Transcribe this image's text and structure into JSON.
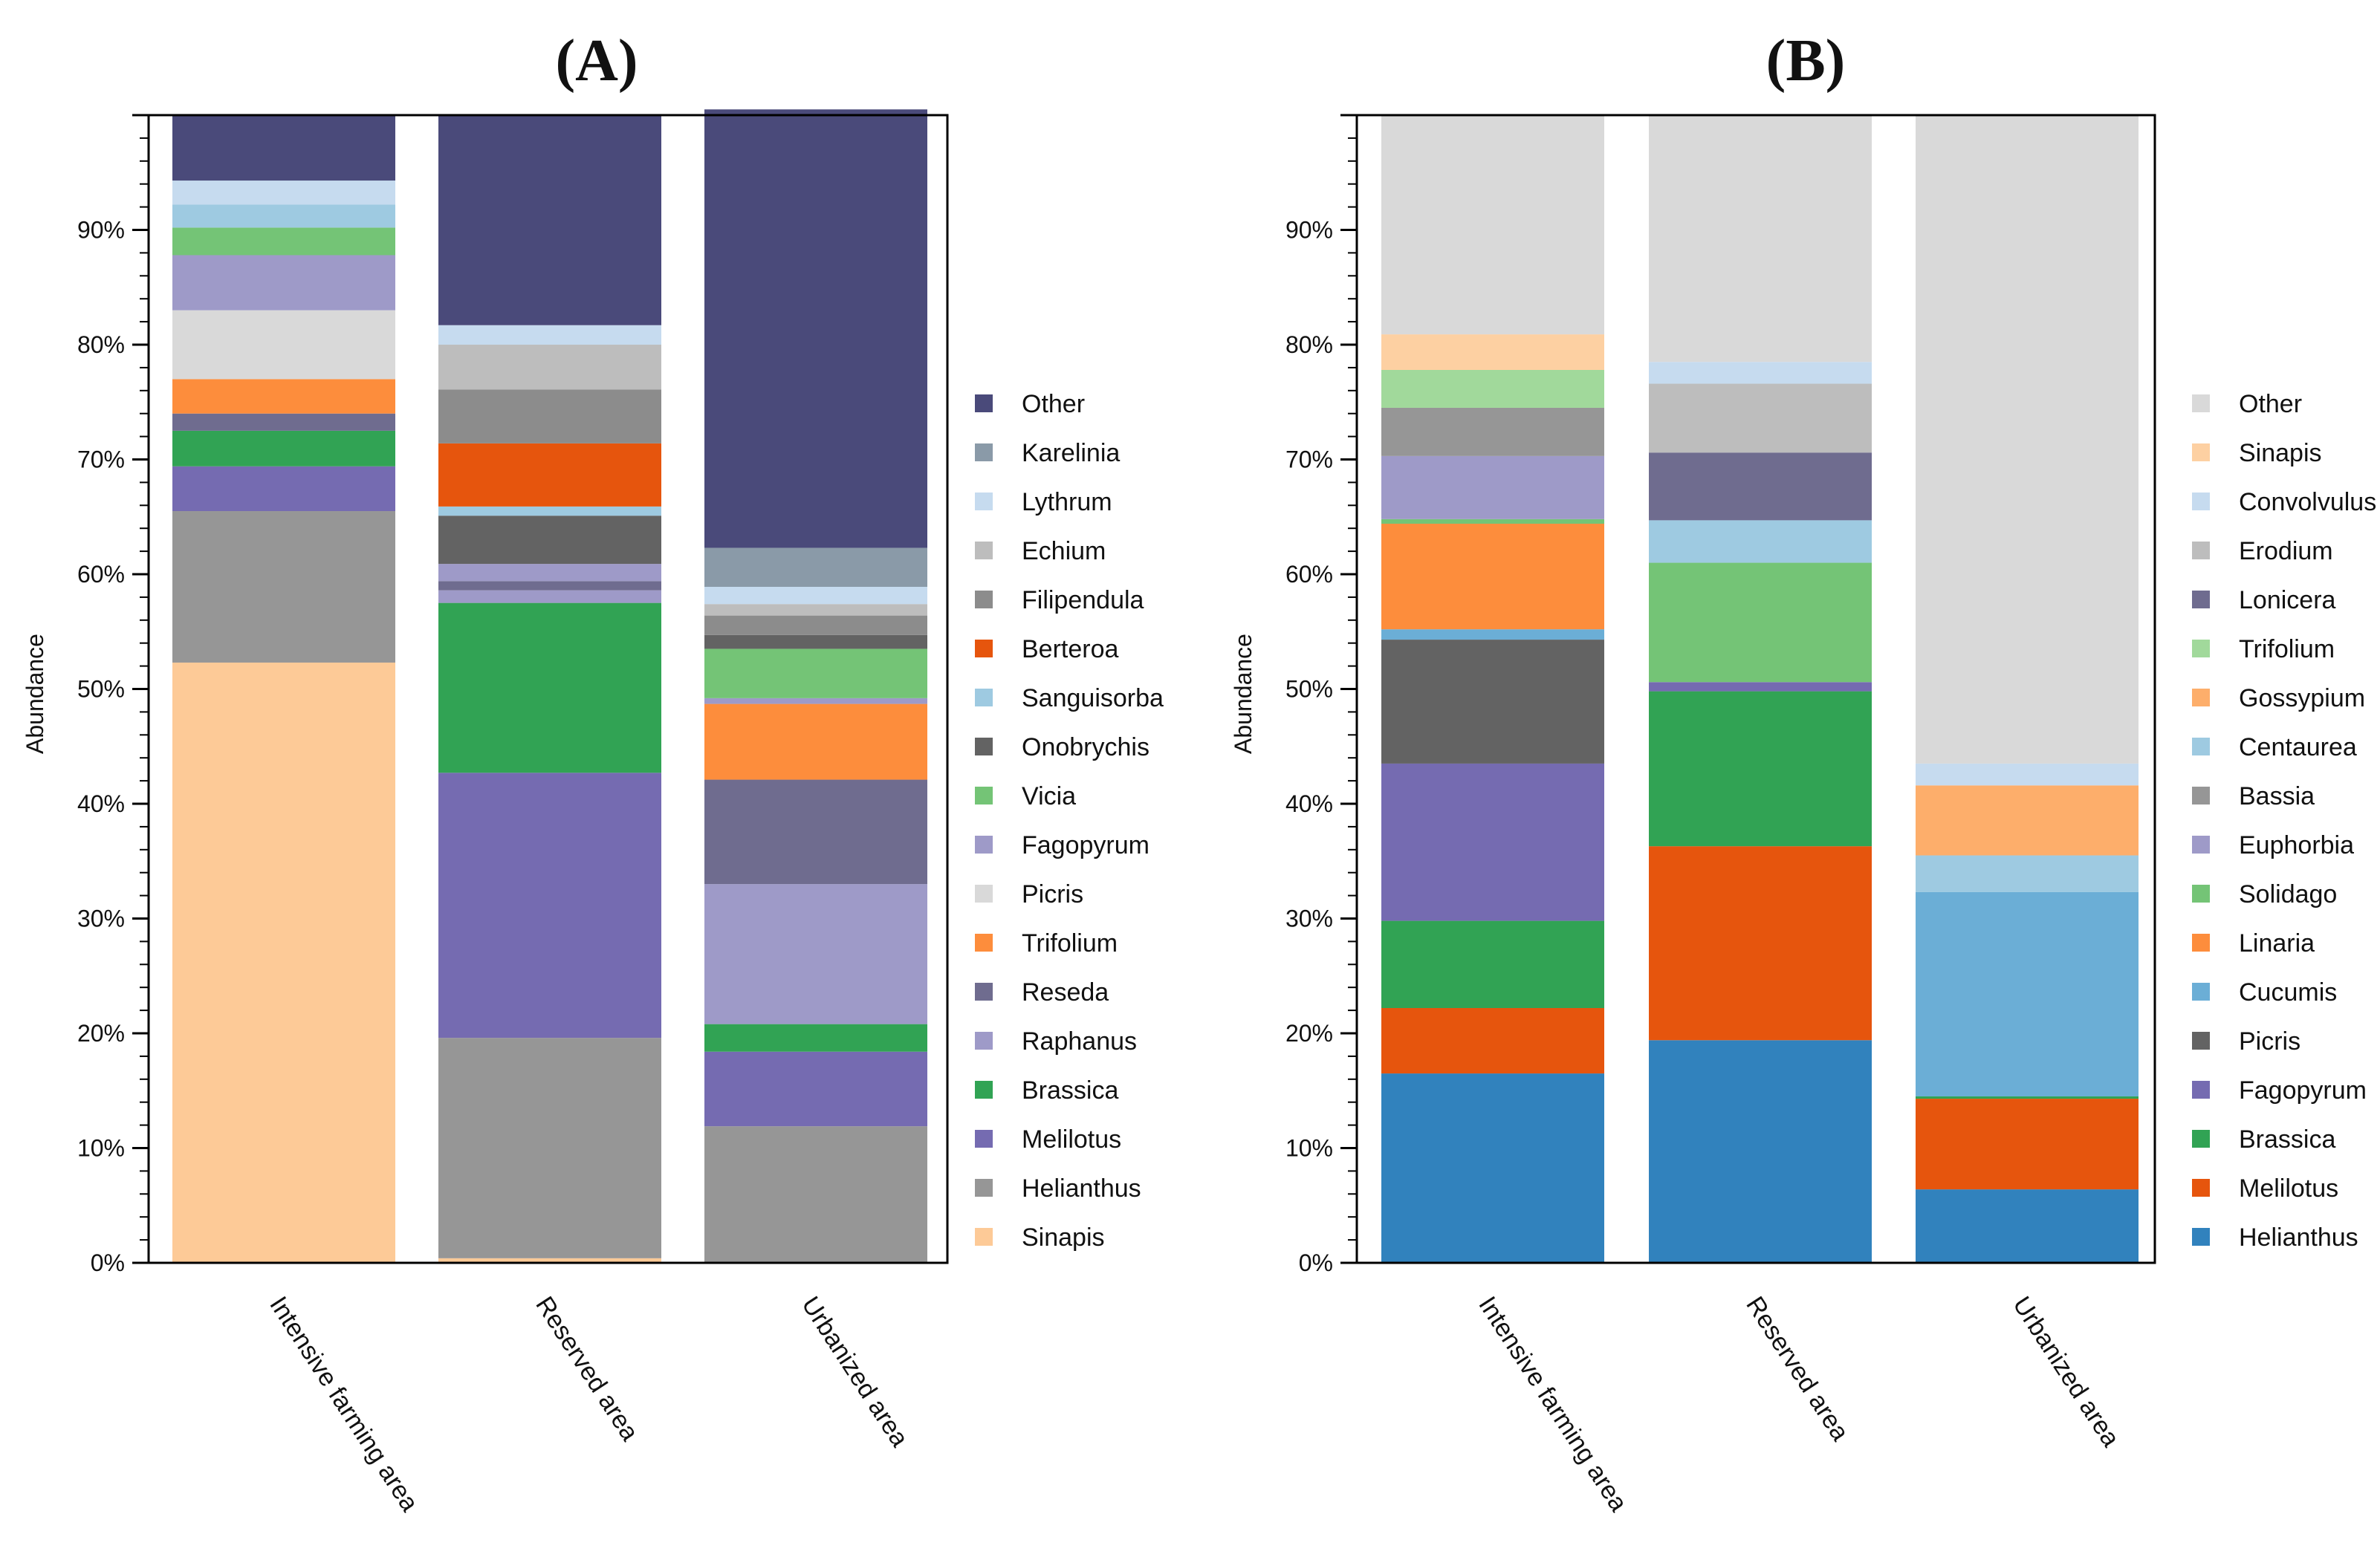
{
  "chart_data": [
    {
      "type": "stacked-bar",
      "title": "(A)",
      "ylabel": "Abundance",
      "xlabel": "",
      "ylim": [
        0,
        100
      ],
      "yticks": [
        "0%",
        "10%",
        "20%",
        "30%",
        "40%",
        "50%",
        "60%",
        "70%",
        "80%",
        "90%"
      ],
      "categories": [
        "Intensive farming area",
        "Reserved area",
        "Urbanized area"
      ],
      "legend_position": "right",
      "series": [
        {
          "name": "Sinapis",
          "color": "#fdca97",
          "values": [
            52.3,
            0.4,
            0.0
          ]
        },
        {
          "name": "Helianthus",
          "color": "#969696",
          "values": [
            13.2,
            19.2,
            11.9
          ]
        },
        {
          "name": "Melilotus",
          "color": "#756bb1",
          "values": [
            3.9,
            23.1,
            6.5
          ]
        },
        {
          "name": "Brassica",
          "color": "#31a354",
          "values": [
            3.1,
            14.8,
            2.4
          ]
        },
        {
          "name": "Raphanus",
          "color": "#9e9ac8",
          "values": [
            0.0,
            1.1,
            12.2
          ]
        },
        {
          "name": "Reseda",
          "color": "#6f6c8f",
          "values": [
            1.5,
            0.8,
            9.1
          ]
        },
        {
          "name": "Trifolium",
          "color": "#fd8d3c",
          "values": [
            3.0,
            0.0,
            6.6
          ]
        },
        {
          "name": "Picris",
          "color": "#d9d9d9",
          "values": [
            6.0,
            0.0,
            0.0
          ]
        },
        {
          "name": "Fagopyrum",
          "color": "#9e9ac8",
          "values": [
            4.8,
            1.5,
            0.5
          ]
        },
        {
          "name": "Vicia",
          "color": "#74c476",
          "values": [
            2.4,
            0.0,
            4.3
          ]
        },
        {
          "name": "Onobrychis",
          "color": "#636363",
          "values": [
            0.0,
            4.2,
            1.2
          ]
        },
        {
          "name": "Sanguisorba",
          "color": "#9ecae1",
          "values": [
            2.0,
            0.8,
            0.0
          ]
        },
        {
          "name": "Berteroa",
          "color": "#e6550d",
          "values": [
            0.0,
            5.5,
            0.0
          ]
        },
        {
          "name": "Filipendula",
          "color": "#8c8c8c",
          "values": [
            0.0,
            4.7,
            1.7
          ]
        },
        {
          "name": "Echium",
          "color": "#bdbdbd",
          "values": [
            0.0,
            3.9,
            1.0
          ]
        },
        {
          "name": "Lythrum",
          "color": "#c6dbef",
          "values": [
            2.1,
            1.7,
            1.5
          ]
        },
        {
          "name": "Karelinia",
          "color": "#8a9aa8",
          "values": [
            0.0,
            0.0,
            3.4
          ]
        },
        {
          "name": "Other",
          "color": "#4a4a7a",
          "values": [
            5.7,
            18.3,
            38.2
          ]
        }
      ]
    },
    {
      "type": "stacked-bar",
      "title": "(B)",
      "ylabel": "Abundance",
      "xlabel": "",
      "ylim": [
        0,
        100
      ],
      "yticks": [
        "0%",
        "10%",
        "20%",
        "30%",
        "40%",
        "50%",
        "60%",
        "70%",
        "80%",
        "90%"
      ],
      "categories": [
        "Intensive farming area",
        "Reserved area",
        "Urbanized area"
      ],
      "legend_position": "right",
      "series": [
        {
          "name": "Helianthus",
          "color": "#3182bd",
          "values": [
            16.5,
            19.4,
            6.4
          ]
        },
        {
          "name": "Melilotus",
          "color": "#e6550d",
          "values": [
            5.7,
            16.9,
            7.9
          ]
        },
        {
          "name": "Brassica",
          "color": "#31a354",
          "values": [
            7.6,
            13.5,
            0.2
          ]
        },
        {
          "name": "Fagopyrum",
          "color": "#756bb1",
          "values": [
            13.7,
            0.8,
            0.0
          ]
        },
        {
          "name": "Picris",
          "color": "#636363",
          "values": [
            10.8,
            0.0,
            0.0
          ]
        },
        {
          "name": "Cucumis",
          "color": "#6baed6",
          "values": [
            0.9,
            0.0,
            17.8
          ]
        },
        {
          "name": "Linaria",
          "color": "#fd8d3c",
          "values": [
            9.2,
            0.0,
            0.0
          ]
        },
        {
          "name": "Solidago",
          "color": "#74c476",
          "values": [
            0.4,
            10.4,
            0.0
          ]
        },
        {
          "name": "Euphorbia",
          "color": "#9e9ac8",
          "values": [
            5.5,
            0.0,
            0.0
          ]
        },
        {
          "name": "Bassia",
          "color": "#969696",
          "values": [
            4.2,
            0.0,
            0.0
          ]
        },
        {
          "name": "Centaurea",
          "color": "#9ecae1",
          "values": [
            0.0,
            3.7,
            3.2
          ]
        },
        {
          "name": "Gossypium",
          "color": "#fdae6b",
          "values": [
            0.0,
            0.0,
            6.1
          ]
        },
        {
          "name": "Trifolium",
          "color": "#a1d99b",
          "values": [
            3.3,
            0.0,
            0.0
          ]
        },
        {
          "name": "Lonicera",
          "color": "#6f6c8f",
          "values": [
            0.0,
            5.9,
            0.0
          ]
        },
        {
          "name": "Erodium",
          "color": "#bdbdbd",
          "values": [
            0.0,
            6.0,
            0.0
          ]
        },
        {
          "name": "Convolvulus",
          "color": "#c6dbef",
          "values": [
            0.0,
            1.9,
            1.9
          ]
        },
        {
          "name": "Sinapis",
          "color": "#fdd0a2",
          "values": [
            3.1,
            0.0,
            0.0
          ]
        },
        {
          "name": "Other",
          "color": "#d9d9d9",
          "values": [
            19.1,
            21.5,
            56.5
          ]
        }
      ]
    }
  ]
}
